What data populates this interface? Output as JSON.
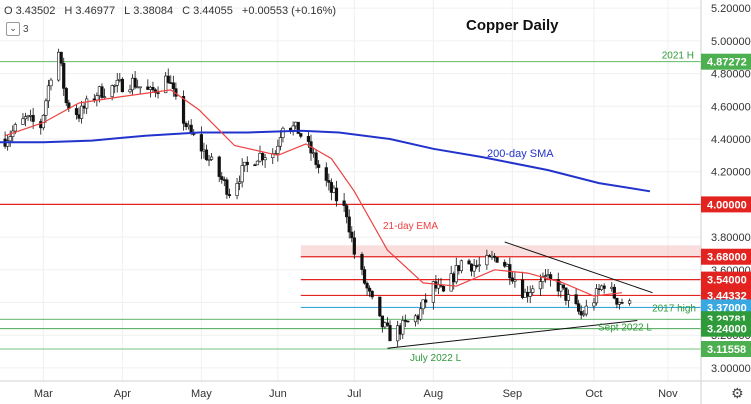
{
  "header": {
    "ohlc": [
      {
        "label": "O",
        "value": "3.43502"
      },
      {
        "label": "H",
        "value": "3.46977"
      },
      {
        "label": "L",
        "value": "3.38084"
      },
      {
        "label": "C",
        "value": "3.44055"
      },
      {
        "label": "",
        "value": "+0.00553 (+0.16%)"
      }
    ],
    "indicator_count": "3"
  },
  "chart_data": {
    "type": "candlestick",
    "title": "Copper Daily",
    "y_range": [
      2.92,
      5.25
    ],
    "y_ticks": [
      3.0,
      3.2,
      3.4,
      3.6,
      3.8,
      4.0,
      4.2,
      4.4,
      4.6,
      4.8,
      5.0,
      5.2
    ],
    "y_tick_labels": [
      "3.00000",
      "3.20000",
      "3.40000",
      "3.60000",
      "3.80000",
      "4.00000",
      "4.20000",
      "4.40000",
      "4.60000",
      "4.80000",
      "5.00000",
      "5.20000"
    ],
    "x_range": [
      "2022-02-12",
      "2022-11-14"
    ],
    "x_ticks": [
      {
        "date": "2022-03-01",
        "label": "Mar"
      },
      {
        "date": "2022-04-01",
        "label": "Apr"
      },
      {
        "date": "2022-05-02",
        "label": "May"
      },
      {
        "date": "2022-06-01",
        "label": "Jun"
      },
      {
        "date": "2022-07-01",
        "label": "Jul"
      },
      {
        "date": "2022-08-01",
        "label": "Aug"
      },
      {
        "date": "2022-09-01",
        "label": "Sep"
      },
      {
        "date": "2022-10-03",
        "label": "Oct"
      },
      {
        "date": "2022-11-01",
        "label": "Nov"
      }
    ],
    "price_anchors": [
      [
        "2022-02-14",
        4.4
      ],
      [
        "2022-02-22",
        4.52
      ],
      [
        "2022-02-28",
        4.48
      ],
      [
        "2022-03-04",
        4.8
      ],
      [
        "2022-03-07",
        4.93
      ],
      [
        "2022-03-10",
        4.62
      ],
      [
        "2022-03-15",
        4.55
      ],
      [
        "2022-03-22",
        4.68
      ],
      [
        "2022-03-29",
        4.72
      ],
      [
        "2022-04-05",
        4.75
      ],
      [
        "2022-04-12",
        4.68
      ],
      [
        "2022-04-19",
        4.78
      ],
      [
        "2022-04-22",
        4.62
      ],
      [
        "2022-04-27",
        4.45
      ],
      [
        "2022-05-04",
        4.3
      ],
      [
        "2022-05-10",
        4.15
      ],
      [
        "2022-05-13",
        4.08
      ],
      [
        "2022-05-18",
        4.2
      ],
      [
        "2022-05-24",
        4.3
      ],
      [
        "2022-05-31",
        4.32
      ],
      [
        "2022-06-03",
        4.5
      ],
      [
        "2022-06-09",
        4.45
      ],
      [
        "2022-06-14",
        4.32
      ],
      [
        "2022-06-21",
        4.1
      ],
      [
        "2022-06-28",
        3.95
      ],
      [
        "2022-07-01",
        3.7
      ],
      [
        "2022-07-06",
        3.48
      ],
      [
        "2022-07-11",
        3.28
      ],
      [
        "2022-07-15",
        3.2
      ],
      [
        "2022-07-20",
        3.25
      ],
      [
        "2022-07-26",
        3.32
      ],
      [
        "2022-08-01",
        3.5
      ],
      [
        "2022-08-05",
        3.45
      ],
      [
        "2022-08-12",
        3.65
      ],
      [
        "2022-08-19",
        3.62
      ],
      [
        "2022-08-26",
        3.68
      ],
      [
        "2022-08-30",
        3.62
      ],
      [
        "2022-09-06",
        3.45
      ],
      [
        "2022-09-12",
        3.55
      ],
      [
        "2022-09-19",
        3.5
      ],
      [
        "2022-09-23",
        3.42
      ],
      [
        "2022-09-28",
        3.32
      ],
      [
        "2022-10-03",
        3.42
      ],
      [
        "2022-10-07",
        3.52
      ],
      [
        "2022-10-12",
        3.42
      ],
      [
        "2022-10-17",
        3.38
      ]
    ],
    "ema21_label": "21-day EMA",
    "ema21_color": "#f04040",
    "ema21": [
      [
        "2022-02-14",
        4.42
      ],
      [
        "2022-03-01",
        4.5
      ],
      [
        "2022-03-15",
        4.62
      ],
      [
        "2022-04-01",
        4.66
      ],
      [
        "2022-04-20",
        4.7
      ],
      [
        "2022-05-01",
        4.58
      ],
      [
        "2022-05-15",
        4.36
      ],
      [
        "2022-06-01",
        4.3
      ],
      [
        "2022-06-12",
        4.37
      ],
      [
        "2022-06-22",
        4.28
      ],
      [
        "2022-07-01",
        4.08
      ],
      [
        "2022-07-14",
        3.72
      ],
      [
        "2022-07-28",
        3.52
      ],
      [
        "2022-08-10",
        3.5
      ],
      [
        "2022-08-25",
        3.6
      ],
      [
        "2022-09-07",
        3.58
      ],
      [
        "2022-09-21",
        3.52
      ],
      [
        "2022-10-03",
        3.44
      ],
      [
        "2022-10-14",
        3.46
      ]
    ],
    "sma200_label": "200-day SMA",
    "sma200_color": "#2233cc",
    "sma200": [
      [
        "2022-02-12",
        4.38
      ],
      [
        "2022-03-01",
        4.38
      ],
      [
        "2022-03-20",
        4.39
      ],
      [
        "2022-04-10",
        4.42
      ],
      [
        "2022-05-01",
        4.44
      ],
      [
        "2022-05-20",
        4.44
      ],
      [
        "2022-06-10",
        4.45
      ],
      [
        "2022-06-25",
        4.44
      ],
      [
        "2022-07-15",
        4.4
      ],
      [
        "2022-08-01",
        4.34
      ],
      [
        "2022-08-20",
        4.29
      ],
      [
        "2022-09-15",
        4.21
      ],
      [
        "2022-10-05",
        4.13
      ],
      [
        "2022-10-25",
        4.08
      ]
    ],
    "levels": [
      {
        "value": 4.87272,
        "label": "4.87272",
        "color": "#4caf50",
        "note": "2021 H",
        "style": "thin"
      },
      {
        "value": 4.0,
        "label": "4.00000",
        "color": "#e3231f",
        "note": "",
        "style": "solid"
      },
      {
        "value": 3.68,
        "label": "3.68000",
        "color": "#e3231f",
        "note": "",
        "style": "solid"
      },
      {
        "value": 3.54,
        "label": "3.54000",
        "color": "#e3231f",
        "note": "",
        "style": "solid"
      },
      {
        "value": 3.44332,
        "label": "3.44332",
        "color": "#e3231f",
        "note": "",
        "style": "solid"
      },
      {
        "value": 3.37,
        "label": "3.37000",
        "color": "#3aa8e0",
        "note": "2017 high",
        "style": "solid"
      },
      {
        "value": 3.29781,
        "label": "3.29781",
        "color": "#2e9a3a",
        "note": "",
        "style": "thin"
      },
      {
        "value": 3.24,
        "label": "3.24000",
        "color": "#2e9a3a",
        "note": "Sept 2022 L",
        "style": "thin"
      },
      {
        "value": 3.11558,
        "label": "3.11558",
        "color": "#4caf50",
        "note": "July 2022 L",
        "style": "thin"
      }
    ],
    "resistance_zone": [
      3.68,
      3.75
    ],
    "trendlines": [
      {
        "from": [
          "2022-07-14",
          3.12
        ],
        "to": [
          "2022-10-20",
          3.29
        ]
      },
      {
        "from": [
          "2022-08-29",
          3.77
        ],
        "to": [
          "2022-10-26",
          3.46
        ]
      }
    ]
  }
}
